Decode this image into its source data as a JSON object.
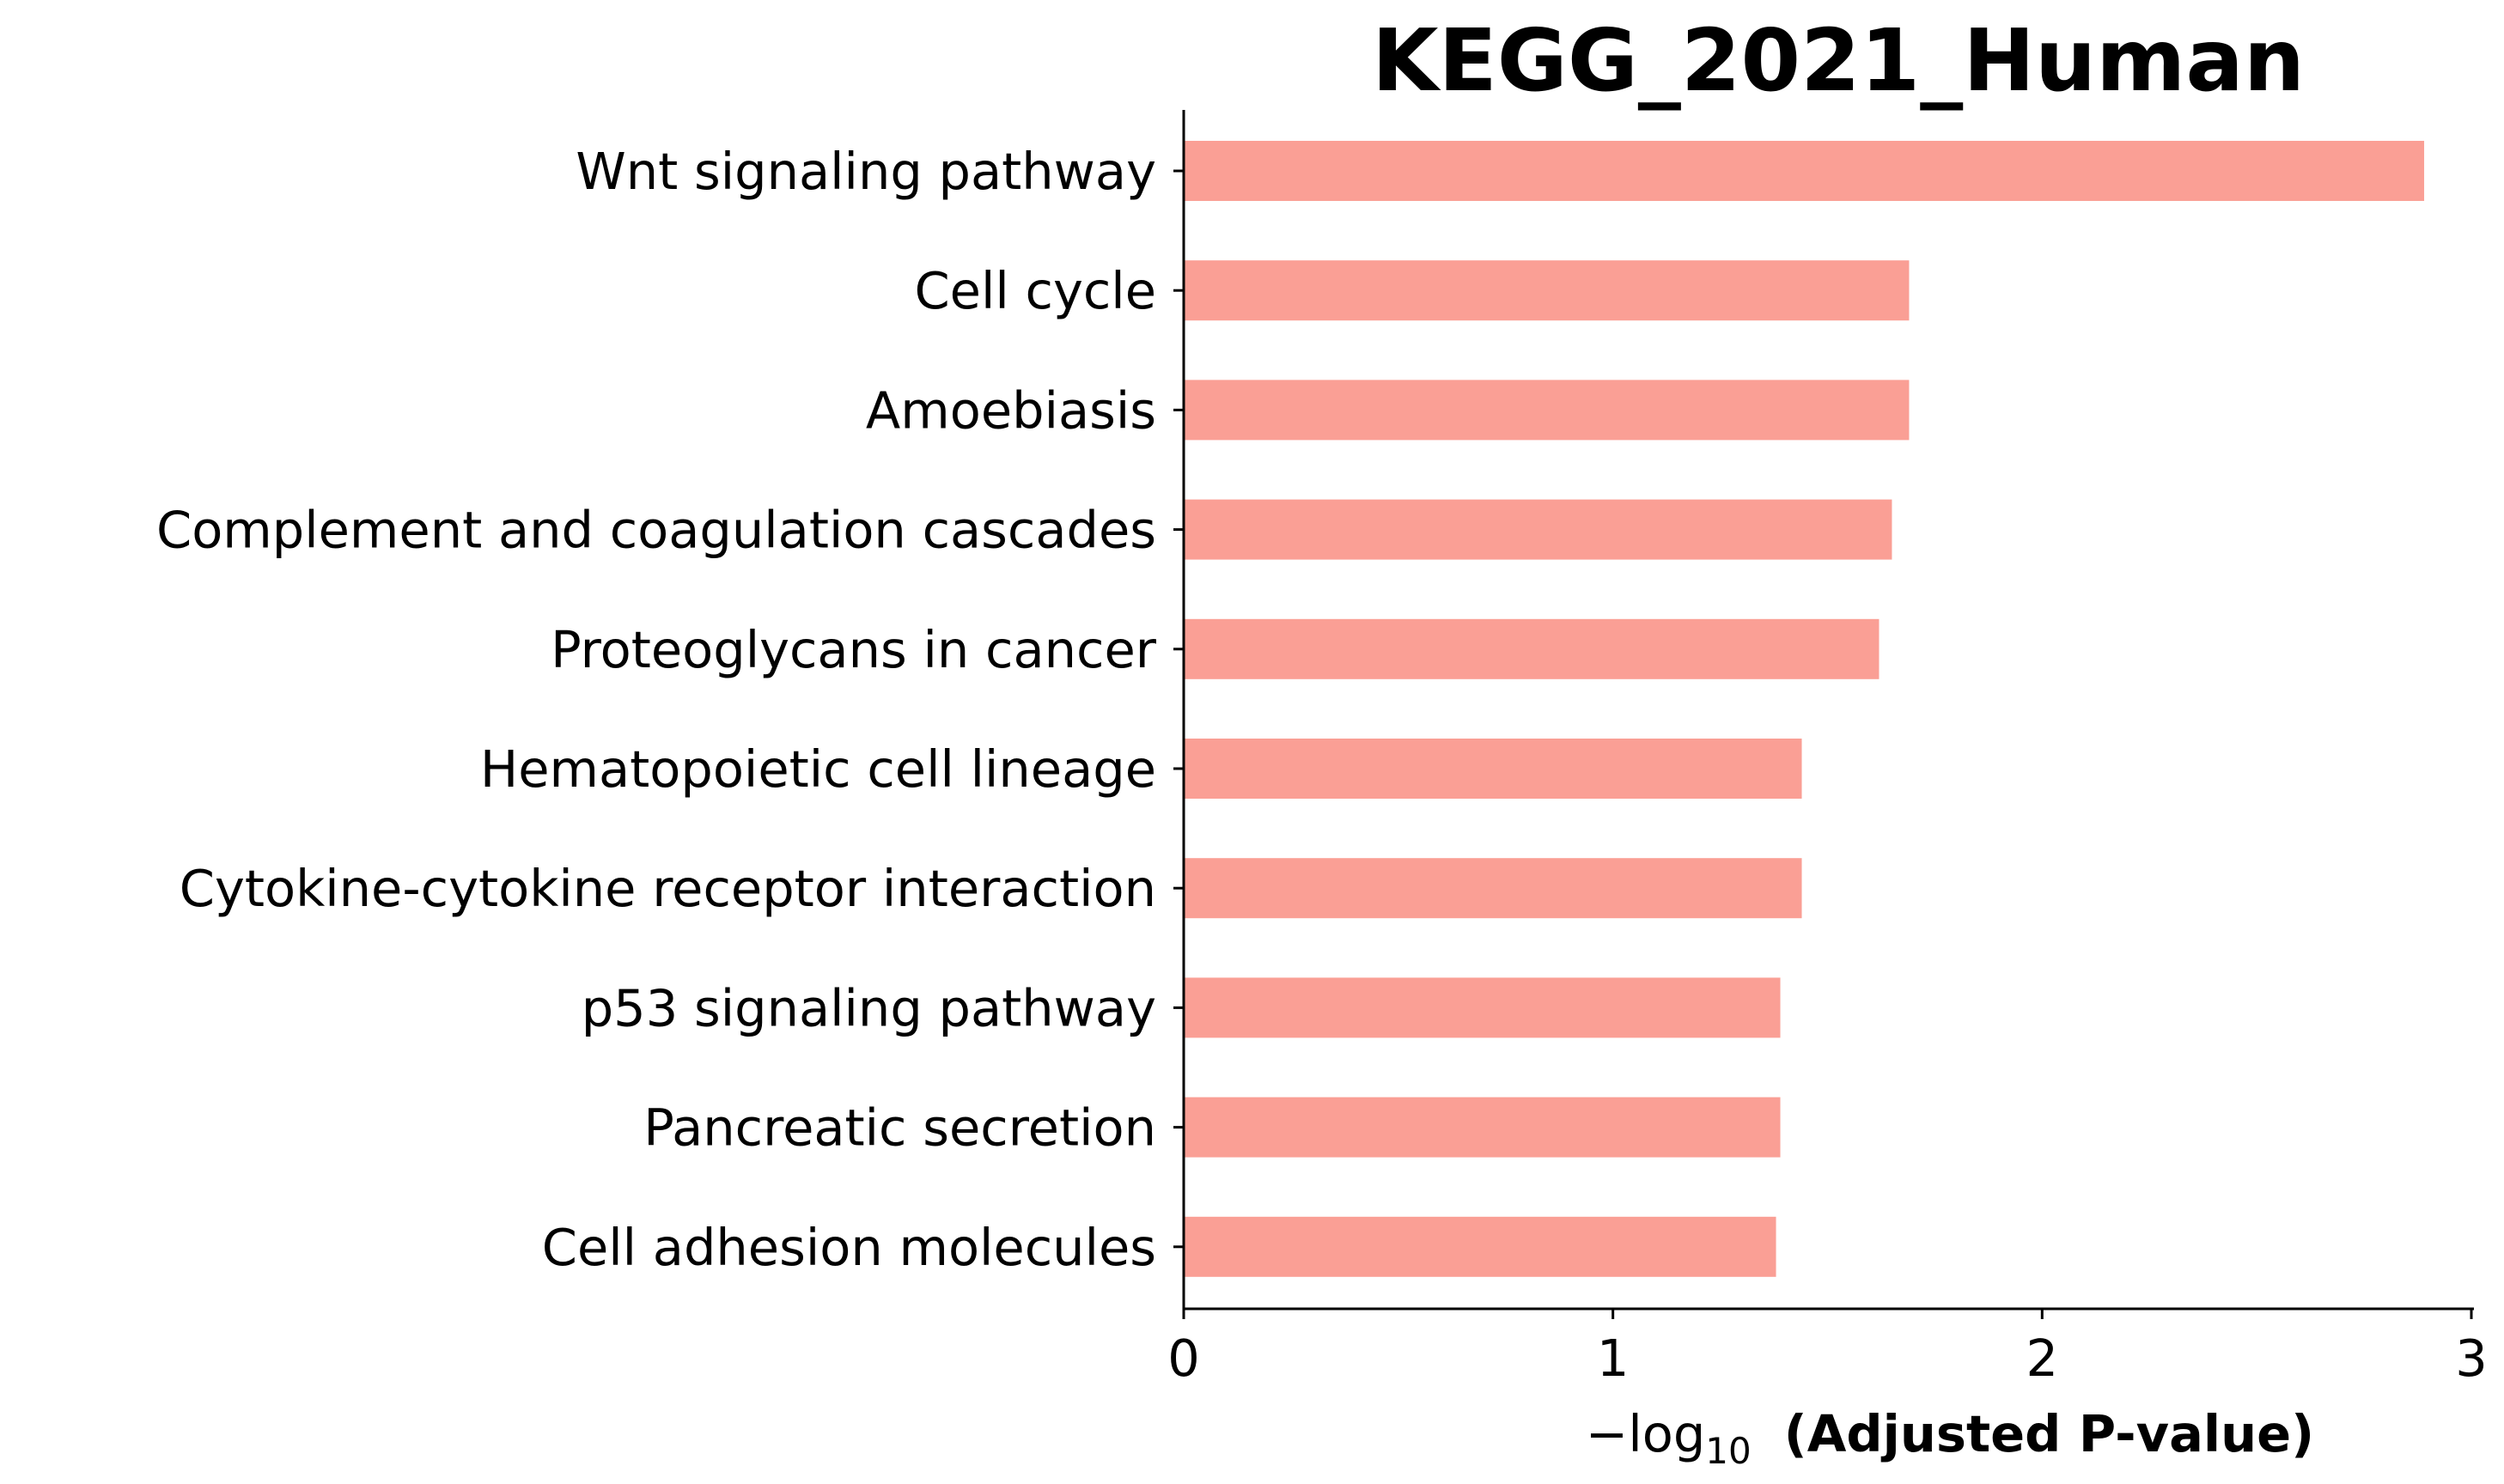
{
  "chart_data": {
    "type": "bar",
    "orientation": "horizontal",
    "title": "KEGG_2021_Human",
    "categories": [
      "Wnt signaling pathway",
      "Cell cycle",
      "Amoebiasis",
      "Complement and coagulation cascades",
      "Proteoglycans in cancer",
      "Hematopoietic cell lineage",
      "Cytokine-cytokine receptor interaction",
      "p53 signaling pathway",
      "Pancreatic secretion",
      "Cell adhesion molecules"
    ],
    "values": [
      2.89,
      1.69,
      1.69,
      1.65,
      1.62,
      1.44,
      1.44,
      1.39,
      1.39,
      1.38
    ],
    "xlim": [
      0,
      3
    ],
    "xticks": [
      0,
      1,
      2,
      3
    ],
    "xtick_labels": [
      "0",
      "1",
      "2",
      "3"
    ],
    "xlabel": {
      "prefix": "−log",
      "subscript": "10",
      "suffix": "(Adjusted P-value)"
    },
    "ylabel": "",
    "bar_color": "#fa9f95",
    "grid": false,
    "legend": "none"
  }
}
